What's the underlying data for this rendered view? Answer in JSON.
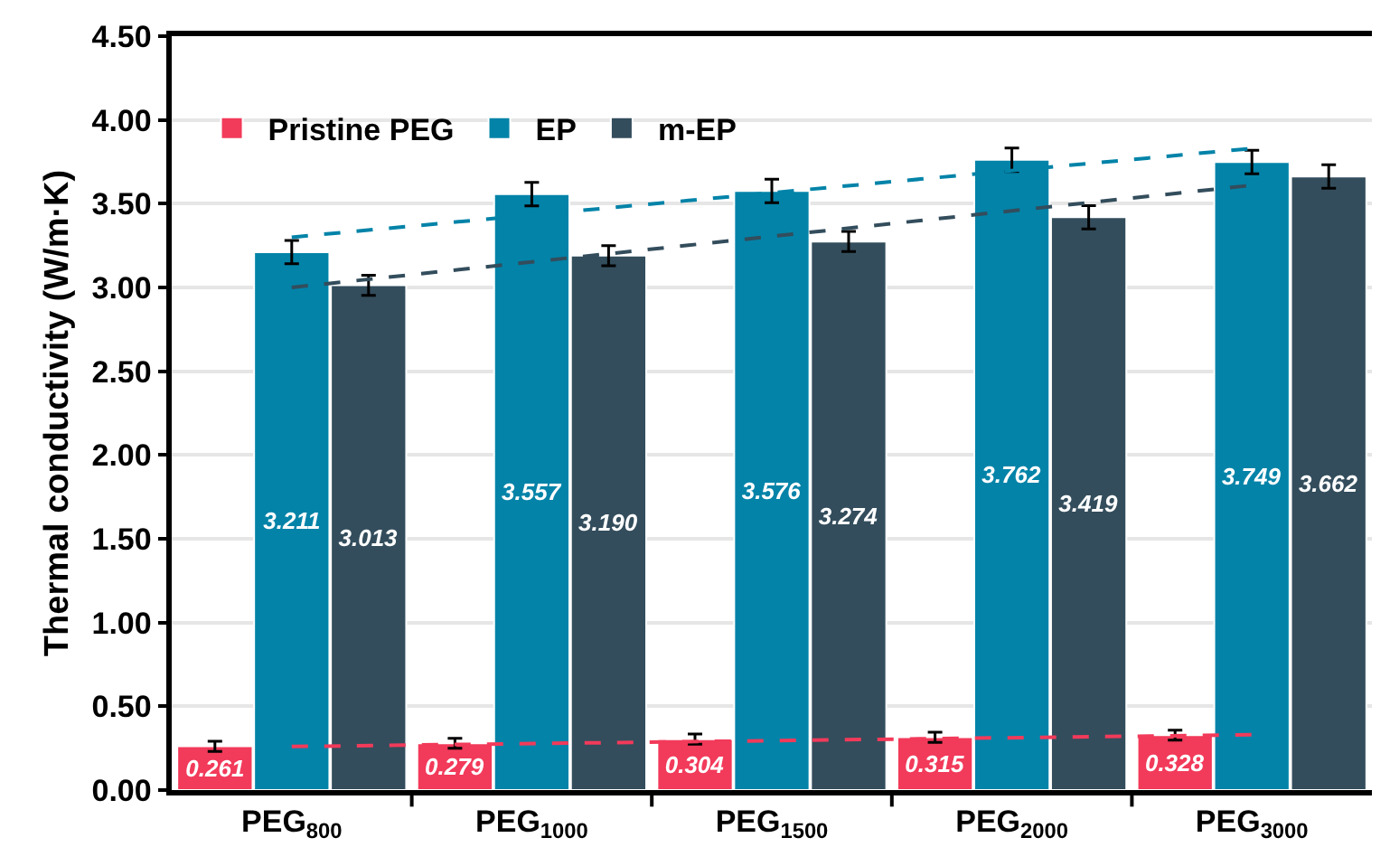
{
  "chart_data": {
    "type": "bar",
    "ylabel": "Thermal conductivity (W/m·K)",
    "categories": [
      "PEG$_{800}$",
      "PEG$_{1000}$",
      "PEG$_{1500}$",
      "PEG$_{2000}$",
      "PEG$_{3000}$"
    ],
    "series": [
      {
        "name": "Pristine PEG",
        "color": "#f23a5a",
        "values": [
          0.261,
          0.279,
          0.304,
          0.315,
          0.328
        ],
        "errors": [
          0.03,
          0.03,
          0.03,
          0.03,
          0.03
        ],
        "value_labels": [
          "0.261",
          "0.279",
          "0.304",
          "0.315",
          "0.328"
        ]
      },
      {
        "name": "EP",
        "color": "#0383a8",
        "values": [
          3.211,
          3.557,
          3.576,
          3.762,
          3.749
        ],
        "errors": [
          0.07,
          0.07,
          0.07,
          0.07,
          0.07
        ],
        "value_labels": [
          "3.211",
          "3.557",
          "3.576",
          "3.762",
          "3.749"
        ]
      },
      {
        "name": "m-EP",
        "color": "#334d5c",
        "values": [
          3.013,
          3.19,
          3.274,
          3.419,
          3.662
        ],
        "errors": [
          0.06,
          0.06,
          0.06,
          0.07,
          0.07
        ],
        "value_labels": [
          "3.013",
          "3.190",
          "3.274",
          "3.419",
          "3.662"
        ]
      },
      {
        "type": "line",
        "color": "#0383a8",
        "line_style": "dashed",
        "x": [
          "PEG$_{800}$",
          "PEG$_{3000}$"
        ],
        "values": [
          3.3,
          3.83
        ]
      },
      {
        "type": "line",
        "color": "#334d5c",
        "line_style": "dashed",
        "x": [
          "PEG$_{800}$",
          "PEG$_{3000}$"
        ],
        "values": [
          3.0,
          3.61
        ]
      },
      {
        "type": "line",
        "color": "#f23a5a",
        "line_style": "dashed",
        "x": [
          "PEG$_{800}$",
          "PEG$_{3000}$"
        ],
        "values": [
          0.26,
          0.33
        ]
      }
    ],
    "ylim": [
      0,
      4.5
    ],
    "yticks": [
      {
        "value": 0,
        "label": "0.00"
      },
      {
        "value": 0.5,
        "label": "0.50"
      },
      {
        "value": 1,
        "label": "1.00"
      },
      {
        "value": 1.5,
        "label": "1.50"
      },
      {
        "value": 2,
        "label": "2.00"
      },
      {
        "value": 2.5,
        "label": "2.50"
      },
      {
        "value": 3,
        "label": "3.00"
      },
      {
        "value": 3.5,
        "label": "3.50"
      },
      {
        "value": 4,
        "label": "4.00"
      },
      {
        "value": 4.5,
        "label": "4.50"
      }
    ],
    "grid": "y",
    "legend": "top left"
  }
}
